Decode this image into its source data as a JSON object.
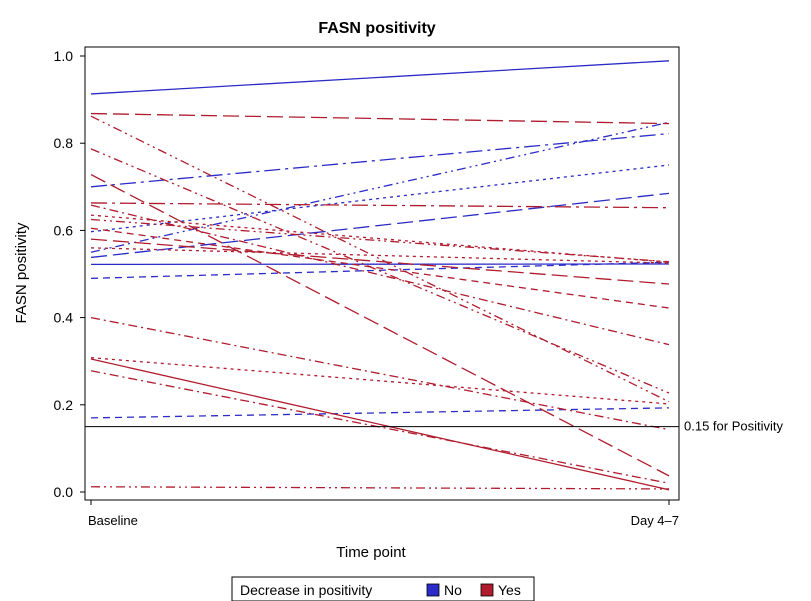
{
  "chart_data": {
    "type": "line",
    "title": "FASN positivity",
    "xlabel": "Time point",
    "ylabel": "FASN positivity",
    "categories": [
      "Baseline",
      "Day 4–7"
    ],
    "ylim": [
      0,
      1
    ],
    "yticks": [
      "0.0",
      "0.2",
      "0.4",
      "0.6",
      "0.8",
      "1.0"
    ],
    "grid": false,
    "reference_line": {
      "value": 0.15,
      "label": "0.15 for Positivity"
    },
    "legend": {
      "title": "Decrease in positivity",
      "placement": "bottom",
      "entries": [
        {
          "label": "No",
          "color": "#2b2bc8"
        },
        {
          "label": "Yes",
          "color": "#b01c2e"
        }
      ]
    },
    "series": [
      {
        "group": "No",
        "dash": "solid",
        "values": [
          0.913,
          0.989
        ]
      },
      {
        "group": "No",
        "dash": "longdashdot",
        "values": [
          0.7,
          0.822
        ]
      },
      {
        "group": "No",
        "dash": "dot",
        "values": [
          0.597,
          0.75
        ]
      },
      {
        "group": "No",
        "dash": "dashdotdot",
        "values": [
          0.55,
          0.848
        ]
      },
      {
        "group": "No",
        "dash": "longdash",
        "values": [
          0.538,
          0.685
        ]
      },
      {
        "group": "No",
        "dash": "solid",
        "values": [
          0.522,
          0.523
        ]
      },
      {
        "group": "No",
        "dash": "dash",
        "values": [
          0.49,
          0.527
        ]
      },
      {
        "group": "No",
        "dash": "dash",
        "values": [
          0.17,
          0.193
        ]
      },
      {
        "group": "Yes",
        "dash": "longdash",
        "values": [
          0.868,
          0.845
        ]
      },
      {
        "group": "Yes",
        "dash": "dashdotdot",
        "values": [
          0.862,
          0.207
        ]
      },
      {
        "group": "Yes",
        "dash": "dashdotdot",
        "values": [
          0.787,
          0.227
        ]
      },
      {
        "group": "Yes",
        "dash": "longdash",
        "values": [
          0.728,
          0.037
        ]
      },
      {
        "group": "Yes",
        "dash": "longdashdot",
        "values": [
          0.663,
          0.652
        ]
      },
      {
        "group": "Yes",
        "dash": "dashdot",
        "values": [
          0.658,
          0.338
        ]
      },
      {
        "group": "Yes",
        "dash": "dot",
        "values": [
          0.635,
          0.527
        ]
      },
      {
        "group": "Yes",
        "dash": "dashdotdot",
        "values": [
          0.625,
          0.528
        ]
      },
      {
        "group": "Yes",
        "dash": "dash",
        "values": [
          0.605,
          0.422
        ]
      },
      {
        "group": "Yes",
        "dash": "longdash",
        "values": [
          0.58,
          0.477
        ]
      },
      {
        "group": "Yes",
        "dash": "dot",
        "values": [
          0.56,
          0.525
        ]
      },
      {
        "group": "Yes",
        "dash": "dashdot",
        "values": [
          0.4,
          0.143
        ]
      },
      {
        "group": "Yes",
        "dash": "dot",
        "values": [
          0.308,
          0.202
        ]
      },
      {
        "group": "Yes",
        "dash": "solid",
        "values": [
          0.305,
          0.005
        ]
      },
      {
        "group": "Yes",
        "dash": "dashdot",
        "values": [
          0.278,
          0.02
        ]
      },
      {
        "group": "Yes",
        "dash": "dashdotdot",
        "values": [
          0.012,
          0.007
        ]
      }
    ]
  }
}
